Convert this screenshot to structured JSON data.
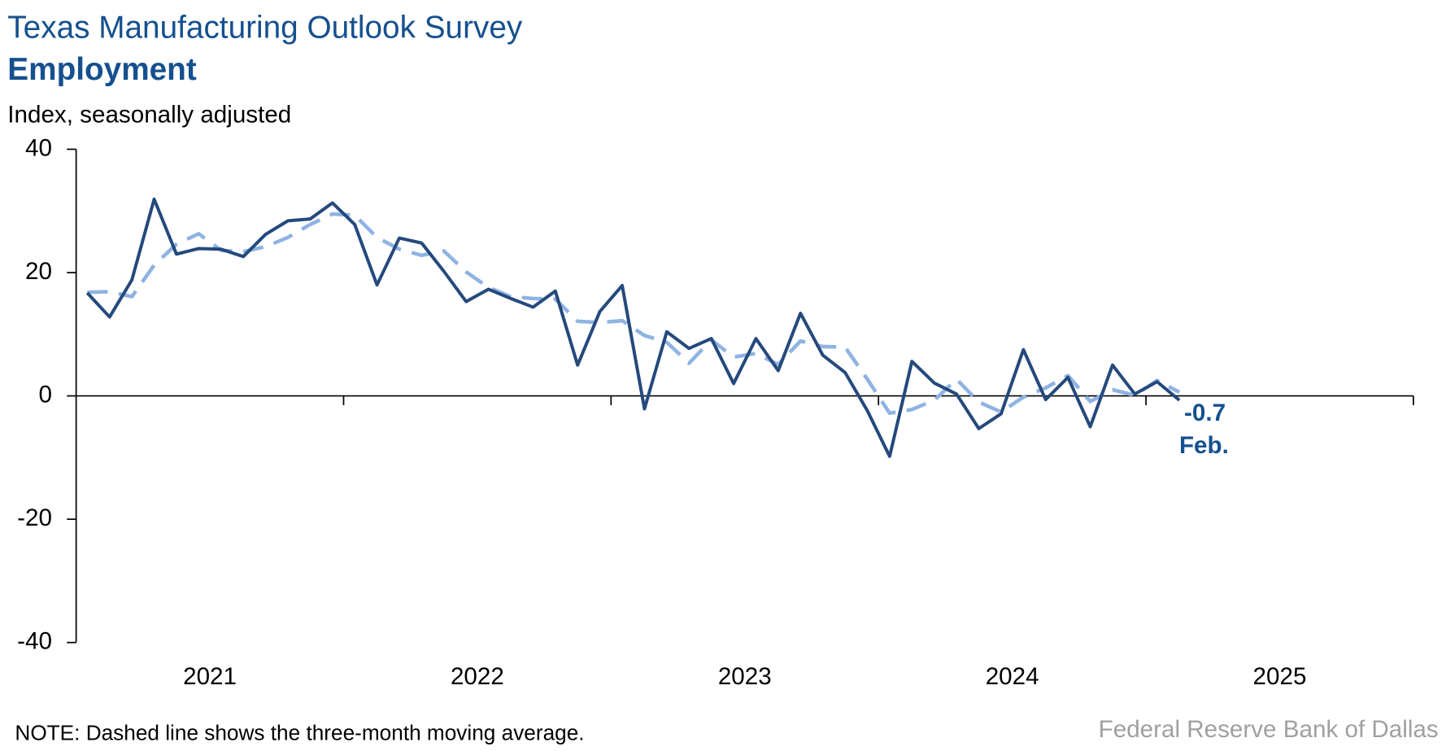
{
  "chart_data": {
    "type": "line",
    "title": "Texas Manufacturing Outlook Survey",
    "subtitle": "Employment",
    "y_axis_label": "Index, seasonally adjusted",
    "note": "NOTE: Dashed line shows the three-month moving average.",
    "source": "Federal Reserve Bank of Dallas",
    "annotations": [
      "-0.7",
      "Feb."
    ],
    "x": [
      "2021-01",
      "2021-02",
      "2021-03",
      "2021-04",
      "2021-05",
      "2021-06",
      "2021-07",
      "2021-08",
      "2021-09",
      "2021-10",
      "2021-11",
      "2021-12",
      "2022-01",
      "2022-02",
      "2022-03",
      "2022-04",
      "2022-05",
      "2022-06",
      "2022-07",
      "2022-08",
      "2022-09",
      "2022-10",
      "2022-11",
      "2022-12",
      "2023-01",
      "2023-02",
      "2023-03",
      "2023-04",
      "2023-05",
      "2023-06",
      "2023-07",
      "2023-08",
      "2023-09",
      "2023-10",
      "2023-11",
      "2023-12",
      "2024-01",
      "2024-02",
      "2024-03",
      "2024-04",
      "2024-05",
      "2024-06",
      "2024-07",
      "2024-08",
      "2024-09",
      "2024-10",
      "2024-11",
      "2024-12",
      "2025-01",
      "2025-02"
    ],
    "xlim": [
      "2021-01",
      "2025-12"
    ],
    "xticks": [
      2021,
      2022,
      2023,
      2024,
      2025
    ],
    "series": [
      {
        "name": "Employment",
        "color": "#24497c",
        "dash": false,
        "values": [
          16.7,
          12.8,
          18.8,
          31.9,
          23.0,
          23.9,
          23.8,
          22.6,
          26.2,
          28.4,
          28.7,
          31.3,
          27.8,
          18.0,
          25.6,
          24.8,
          20.2,
          15.3,
          17.3,
          15.8,
          14.4,
          17.0,
          5.0,
          13.7,
          17.9,
          -2.1,
          10.4,
          7.7,
          9.3,
          2.0,
          9.3,
          4.1,
          13.4,
          6.6,
          3.8,
          -2.4,
          -9.8,
          5.6,
          2.1,
          0.3,
          -5.3,
          -2.9,
          7.5,
          -0.6,
          3.0,
          -5.0,
          5.0,
          0.3,
          2.3,
          -0.7
        ]
      },
      {
        "name": "Three-month moving average",
        "color": "#8fb3e2",
        "dash": true,
        "values": [
          16.8,
          16.9,
          16.1,
          21.2,
          24.6,
          26.3,
          23.6,
          23.4,
          24.2,
          25.7,
          27.8,
          29.5,
          29.3,
          25.7,
          23.8,
          22.8,
          23.5,
          20.1,
          17.6,
          16.1,
          15.8,
          15.7,
          12.1,
          11.9,
          12.2,
          9.8,
          8.7,
          5.3,
          9.1,
          6.3,
          6.9,
          5.1,
          8.9,
          8.0,
          7.9,
          2.7,
          -2.8,
          -2.2,
          -0.7,
          2.7,
          -1.0,
          -2.6,
          -0.2,
          1.3,
          3.3,
          -0.9,
          1.0,
          0.1,
          2.5,
          0.6
        ]
      }
    ],
    "ylim": [
      -40,
      40
    ],
    "yticks": [
      -40,
      -20,
      0,
      20,
      40
    ]
  }
}
